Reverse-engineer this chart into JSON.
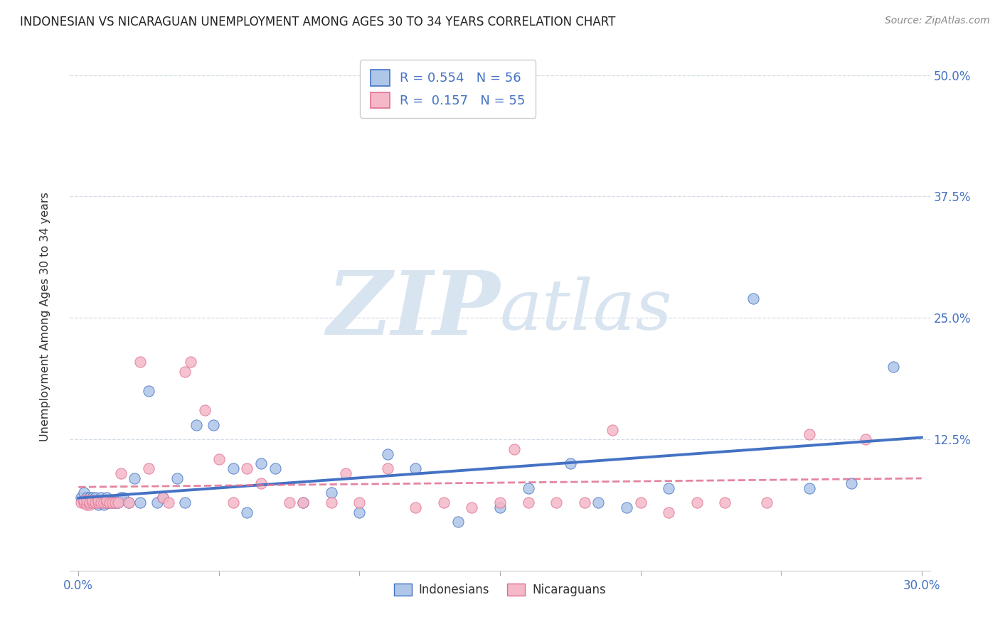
{
  "title": "INDONESIAN VS NICARAGUAN UNEMPLOYMENT AMONG AGES 30 TO 34 YEARS CORRELATION CHART",
  "source": "Source: ZipAtlas.com",
  "xlabel_ticks_labels": [
    "0.0%",
    "",
    "",
    "",
    "",
    "",
    "30.0%"
  ],
  "xlabel_vals": [
    0.0,
    0.05,
    0.1,
    0.15,
    0.2,
    0.25,
    0.3
  ],
  "ylabel_ticks": [
    "12.5%",
    "25.0%",
    "37.5%",
    "50.0%"
  ],
  "ylabel_vals": [
    0.125,
    0.25,
    0.375,
    0.5
  ],
  "ylabel_label": "Unemployment Among Ages 30 to 34 years",
  "legend_labels": [
    "Indonesians",
    "Nicaraguans"
  ],
  "R_indonesian": 0.554,
  "N_indonesian": 56,
  "R_nicaraguan": 0.157,
  "N_nicaraguan": 55,
  "indonesian_color": "#aec6e8",
  "nicaraguan_color": "#f4b8c8",
  "indonesian_line_color": "#4472c4",
  "nicaraguan_line_color": "#e07090",
  "watermark_color": "#d8e4f0",
  "background_color": "#ffffff",
  "indonesian_scatter_x": [
    0.001,
    0.002,
    0.002,
    0.003,
    0.003,
    0.004,
    0.004,
    0.005,
    0.005,
    0.006,
    0.006,
    0.007,
    0.007,
    0.008,
    0.008,
    0.009,
    0.009,
    0.01,
    0.01,
    0.011,
    0.011,
    0.012,
    0.013,
    0.014,
    0.015,
    0.016,
    0.018,
    0.02,
    0.022,
    0.025,
    0.028,
    0.03,
    0.035,
    0.038,
    0.042,
    0.048,
    0.055,
    0.06,
    0.065,
    0.07,
    0.08,
    0.09,
    0.1,
    0.11,
    0.12,
    0.135,
    0.15,
    0.16,
    0.175,
    0.185,
    0.195,
    0.21,
    0.24,
    0.26,
    0.275,
    0.29
  ],
  "indonesian_scatter_y": [
    0.065,
    0.07,
    0.06,
    0.065,
    0.06,
    0.06,
    0.065,
    0.06,
    0.065,
    0.06,
    0.065,
    0.058,
    0.062,
    0.06,
    0.065,
    0.058,
    0.062,
    0.06,
    0.065,
    0.06,
    0.062,
    0.06,
    0.06,
    0.06,
    0.065,
    0.065,
    0.06,
    0.085,
    0.06,
    0.175,
    0.06,
    0.065,
    0.085,
    0.06,
    0.14,
    0.14,
    0.095,
    0.05,
    0.1,
    0.095,
    0.06,
    0.07,
    0.05,
    0.11,
    0.095,
    0.04,
    0.055,
    0.075,
    0.1,
    0.06,
    0.055,
    0.075,
    0.27,
    0.075,
    0.08,
    0.2
  ],
  "nicaraguan_scatter_x": [
    0.001,
    0.002,
    0.002,
    0.003,
    0.003,
    0.004,
    0.004,
    0.005,
    0.005,
    0.006,
    0.007,
    0.007,
    0.008,
    0.009,
    0.01,
    0.01,
    0.011,
    0.012,
    0.013,
    0.014,
    0.015,
    0.018,
    0.022,
    0.025,
    0.03,
    0.032,
    0.038,
    0.04,
    0.045,
    0.05,
    0.055,
    0.06,
    0.065,
    0.075,
    0.08,
    0.09,
    0.095,
    0.1,
    0.11,
    0.12,
    0.13,
    0.14,
    0.15,
    0.155,
    0.16,
    0.17,
    0.18,
    0.19,
    0.2,
    0.21,
    0.22,
    0.23,
    0.245,
    0.26,
    0.28
  ],
  "nicaraguan_scatter_y": [
    0.06,
    0.06,
    0.062,
    0.058,
    0.062,
    0.058,
    0.06,
    0.06,
    0.062,
    0.06,
    0.06,
    0.062,
    0.06,
    0.06,
    0.06,
    0.062,
    0.06,
    0.06,
    0.06,
    0.06,
    0.09,
    0.06,
    0.205,
    0.095,
    0.065,
    0.06,
    0.195,
    0.205,
    0.155,
    0.105,
    0.06,
    0.095,
    0.08,
    0.06,
    0.06,
    0.06,
    0.09,
    0.06,
    0.095,
    0.055,
    0.06,
    0.055,
    0.06,
    0.115,
    0.06,
    0.06,
    0.06,
    0.135,
    0.06,
    0.05,
    0.06,
    0.06,
    0.06,
    0.13,
    0.125
  ]
}
